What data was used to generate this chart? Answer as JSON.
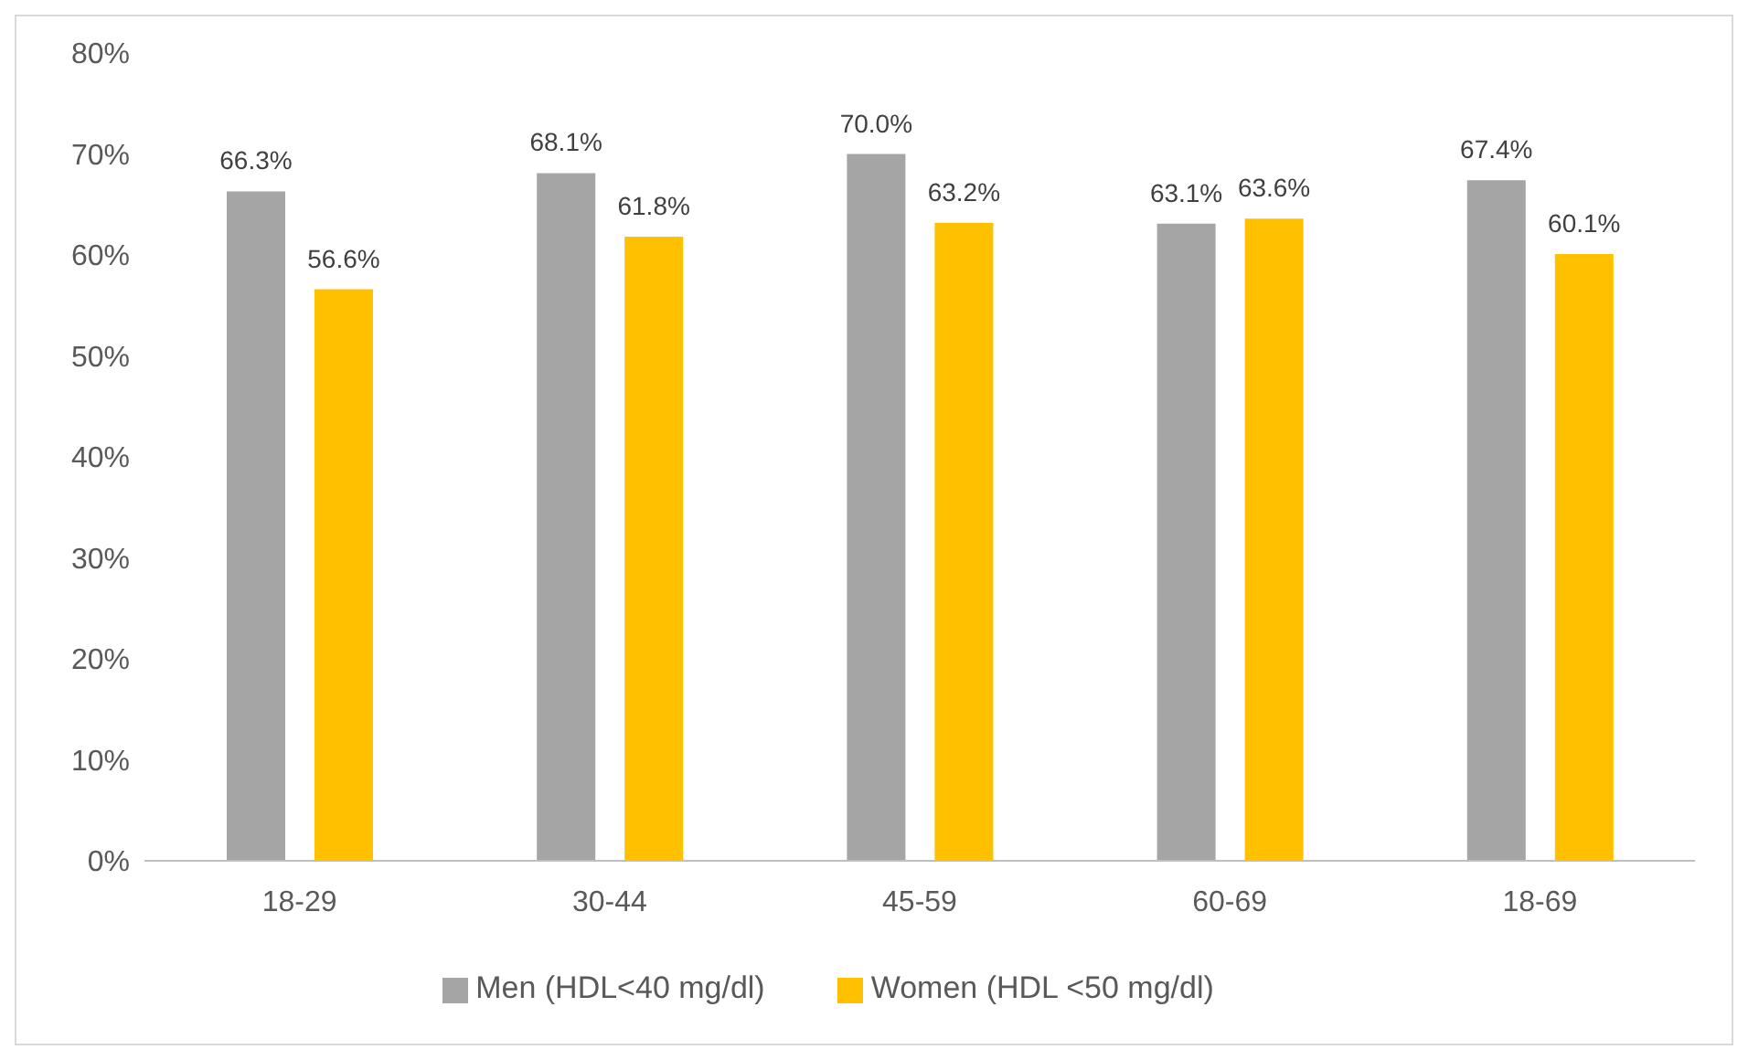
{
  "chart_data": {
    "type": "bar",
    "categories": [
      "18-29",
      "30-44",
      "45-59",
      "60-69",
      "18-69"
    ],
    "series": [
      {
        "name": "Men (HDL<40 mg/dl)",
        "color": "#a5a5a5",
        "values": [
          66.3,
          68.1,
          70.0,
          63.1,
          67.4
        ],
        "value_labels": [
          "66.3%",
          "68.1%",
          "70.0%",
          "63.1%",
          "67.4%"
        ]
      },
      {
        "name": "Women (HDL <50 mg/dl)",
        "color": "#ffc000",
        "values": [
          56.6,
          61.8,
          63.2,
          63.6,
          60.1
        ],
        "value_labels": [
          "56.6%",
          "61.8%",
          "63.2%",
          "63.6%",
          "60.1%"
        ]
      }
    ],
    "ylim": [
      0,
      80
    ],
    "yticks": [
      {
        "value": 0,
        "label": "0%"
      },
      {
        "value": 10,
        "label": "10%"
      },
      {
        "value": 20,
        "label": "20%"
      },
      {
        "value": 30,
        "label": "30%"
      },
      {
        "value": 40,
        "label": "40%"
      },
      {
        "value": 50,
        "label": "50%"
      },
      {
        "value": 60,
        "label": "60%"
      },
      {
        "value": 70,
        "label": "70%"
      },
      {
        "value": 80,
        "label": "80%"
      }
    ],
    "grid": false,
    "legend": "bottom"
  }
}
